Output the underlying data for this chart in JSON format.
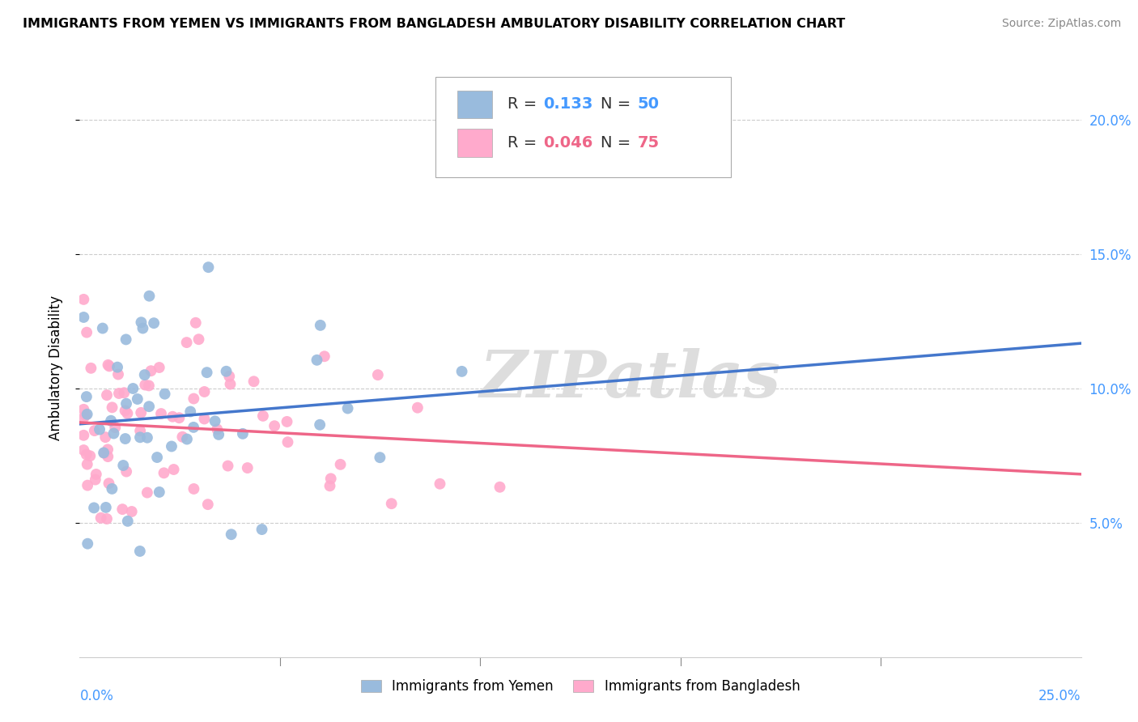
{
  "title": "IMMIGRANTS FROM YEMEN VS IMMIGRANTS FROM BANGLADESH AMBULATORY DISABILITY CORRELATION CHART",
  "source": "Source: ZipAtlas.com",
  "ylabel": "Ambulatory Disability",
  "xlim": [
    0.0,
    0.25
  ],
  "ylim": [
    0.0,
    0.215
  ],
  "yticks": [
    0.05,
    0.1,
    0.15,
    0.2
  ],
  "ytick_labels": [
    "5.0%",
    "10.0%",
    "15.0%",
    "20.0%"
  ],
  "color_yemen": "#99BBDD",
  "color_bangladesh": "#FFAACC",
  "trendline_color_yemen": "#4477CC",
  "trendline_color_bangladesh": "#EE6688",
  "watermark": "ZIPatlas",
  "watermark_color": "#DDDDDD",
  "n_yemen": 50,
  "n_bangladesh": 75,
  "r_yemen": 0.133,
  "r_bangladesh": 0.046,
  "title_fontsize": 11.5,
  "source_fontsize": 10,
  "tick_label_fontsize": 12,
  "legend_fontsize": 14
}
